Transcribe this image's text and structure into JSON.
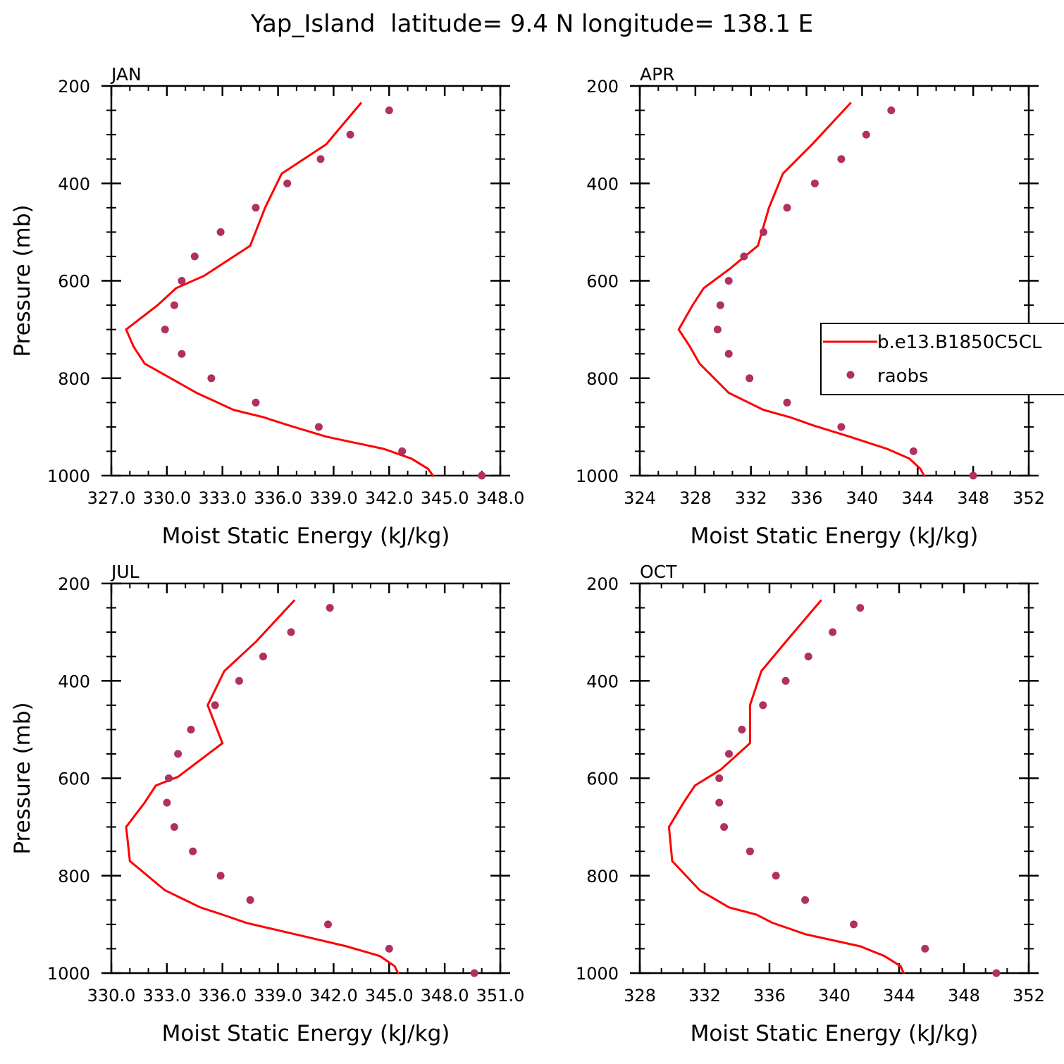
{
  "figure_title": "Yap_Island  latitude= 9.4 N longitude= 138.1 E",
  "chart_data": [
    {
      "type": "line",
      "panel": "JAN",
      "xlabel": "Moist Static Energy (kJ/kg)",
      "ylabel": "Pressure (mb)",
      "xlim": [
        327.0,
        348.0
      ],
      "ylim": [
        1000,
        200
      ],
      "xticks": [
        327,
        330,
        333,
        336,
        339,
        342,
        345,
        348
      ],
      "xtick_labels": [
        "327.0",
        "330.0",
        "333.0",
        "336.0",
        "339.0",
        "342.0",
        "345.0",
        "348.0"
      ],
      "yticks": [
        200,
        400,
        600,
        800,
        1000
      ],
      "ytick_labels": [
        "200",
        "400",
        "600",
        "800",
        "1000"
      ],
      "series": [
        {
          "name": "b.e13.B1850C5CL",
          "kind": "line",
          "color": "#ff0000",
          "points": [
            [
              344.4,
              1002
            ],
            [
              344.1,
              986
            ],
            [
              343.2,
              965
            ],
            [
              341.7,
              945
            ],
            [
              338.6,
              920
            ],
            [
              336.6,
              897
            ],
            [
              335.2,
              880
            ],
            [
              333.6,
              865
            ],
            [
              331.6,
              830
            ],
            [
              328.8,
              770
            ],
            [
              328.2,
              735
            ],
            [
              327.8,
              700
            ],
            [
              329.5,
              650
            ],
            [
              330.5,
              615
            ],
            [
              332.0,
              590
            ],
            [
              334.5,
              528
            ],
            [
              335.3,
              450
            ],
            [
              336.2,
              380
            ],
            [
              338.6,
              320
            ],
            [
              340.5,
              234
            ]
          ]
        },
        {
          "name": "raobs",
          "kind": "markers",
          "color": "#b03060",
          "points": [
            [
              347.0,
              1000
            ],
            [
              342.7,
              950
            ],
            [
              338.2,
              900
            ],
            [
              334.8,
              850
            ],
            [
              332.4,
              800
            ],
            [
              330.8,
              750
            ],
            [
              329.9,
              700
            ],
            [
              330.4,
              650
            ],
            [
              330.8,
              600
            ],
            [
              331.5,
              550
            ],
            [
              332.9,
              500
            ],
            [
              334.8,
              450
            ],
            [
              336.5,
              400
            ],
            [
              338.3,
              350
            ],
            [
              339.9,
              300
            ],
            [
              342.0,
              250
            ]
          ]
        }
      ]
    },
    {
      "type": "line",
      "panel": "APR",
      "xlabel": "Moist Static Energy (kJ/kg)",
      "ylabel": "",
      "xlim": [
        324,
        352
      ],
      "ylim": [
        1000,
        200
      ],
      "xticks": [
        324,
        328,
        332,
        336,
        340,
        344,
        348,
        352
      ],
      "xtick_labels": [
        "324",
        "328",
        "332",
        "336",
        "340",
        "344",
        "348",
        "352"
      ],
      "yticks": [
        200,
        400,
        600,
        800,
        1000
      ],
      "ytick_labels": [
        "200",
        "400",
        "600",
        "800",
        "1000"
      ],
      "legend": {
        "placement": "right",
        "entries": [
          "b.e13.B1850C5CL",
          "raobs"
        ]
      },
      "series": [
        {
          "name": "b.e13.B1850C5CL",
          "kind": "line",
          "color": "#ff0000",
          "points": [
            [
              344.5,
              1002
            ],
            [
              344.2,
              986
            ],
            [
              343.4,
              965
            ],
            [
              341.8,
              945
            ],
            [
              339.1,
              920
            ],
            [
              336.5,
              897
            ],
            [
              334.8,
              880
            ],
            [
              332.9,
              865
            ],
            [
              330.4,
              830
            ],
            [
              328.3,
              770
            ],
            [
              327.6,
              735
            ],
            [
              326.8,
              700
            ],
            [
              327.8,
              650
            ],
            [
              328.6,
              615
            ],
            [
              330.5,
              575
            ],
            [
              332.5,
              528
            ],
            [
              333.3,
              450
            ],
            [
              334.3,
              380
            ],
            [
              336.4,
              320
            ],
            [
              339.2,
              234
            ]
          ]
        },
        {
          "name": "raobs",
          "kind": "markers",
          "color": "#b03060",
          "points": [
            [
              348.0,
              1000
            ],
            [
              343.7,
              950
            ],
            [
              338.5,
              900
            ],
            [
              334.6,
              850
            ],
            [
              331.9,
              800
            ],
            [
              330.4,
              750
            ],
            [
              329.6,
              700
            ],
            [
              329.8,
              650
            ],
            [
              330.4,
              600
            ],
            [
              331.5,
              550
            ],
            [
              332.9,
              500
            ],
            [
              334.6,
              450
            ],
            [
              336.6,
              400
            ],
            [
              338.5,
              350
            ],
            [
              340.3,
              300
            ],
            [
              342.1,
              250
            ]
          ]
        }
      ]
    },
    {
      "type": "line",
      "panel": "JUL",
      "xlabel": "Moist Static Energy (kJ/kg)",
      "ylabel": "Pressure (mb)",
      "xlim": [
        330.0,
        351.0
      ],
      "ylim": [
        1000,
        200
      ],
      "xticks": [
        330,
        333,
        336,
        339,
        342,
        345,
        348,
        351
      ],
      "xtick_labels": [
        "330.0",
        "333.0",
        "336.0",
        "339.0",
        "342.0",
        "345.0",
        "348.0",
        "351.0"
      ],
      "yticks": [
        200,
        400,
        600,
        800,
        1000
      ],
      "ytick_labels": [
        "200",
        "400",
        "600",
        "800",
        "1000"
      ],
      "series": [
        {
          "name": "b.e13.B1850C5CL",
          "kind": "line",
          "color": "#ff0000",
          "points": [
            [
              345.5,
              1002
            ],
            [
              345.3,
              986
            ],
            [
              344.5,
              965
            ],
            [
              342.7,
              945
            ],
            [
              339.9,
              920
            ],
            [
              337.3,
              897
            ],
            [
              336.0,
              880
            ],
            [
              334.8,
              865
            ],
            [
              332.9,
              830
            ],
            [
              331.0,
              770
            ],
            [
              330.9,
              735
            ],
            [
              330.8,
              700
            ],
            [
              331.8,
              650
            ],
            [
              332.4,
              615
            ],
            [
              333.6,
              597
            ],
            [
              336.0,
              528
            ],
            [
              335.2,
              450
            ],
            [
              336.1,
              380
            ],
            [
              337.8,
              320
            ],
            [
              339.9,
              234
            ]
          ]
        },
        {
          "name": "raobs",
          "kind": "markers",
          "color": "#b03060",
          "points": [
            [
              349.6,
              1000
            ],
            [
              345.0,
              950
            ],
            [
              341.7,
              900
            ],
            [
              337.5,
              850
            ],
            [
              335.9,
              800
            ],
            [
              334.4,
              750
            ],
            [
              333.4,
              700
            ],
            [
              333.0,
              650
            ],
            [
              333.1,
              600
            ],
            [
              333.6,
              550
            ],
            [
              334.3,
              500
            ],
            [
              335.6,
              450
            ],
            [
              336.9,
              400
            ],
            [
              338.2,
              350
            ],
            [
              339.7,
              300
            ],
            [
              341.8,
              250
            ]
          ]
        }
      ]
    },
    {
      "type": "line",
      "panel": "OCT",
      "xlabel": "Moist Static Energy (kJ/kg)",
      "ylabel": "",
      "xlim": [
        328,
        352
      ],
      "ylim": [
        1000,
        200
      ],
      "xticks": [
        328,
        332,
        336,
        340,
        344,
        348,
        352
      ],
      "xtick_labels": [
        "328",
        "332",
        "336",
        "340",
        "344",
        "348",
        "352"
      ],
      "yticks": [
        200,
        400,
        600,
        800,
        1000
      ],
      "ytick_labels": [
        "200",
        "400",
        "600",
        "800",
        "1000"
      ],
      "series": [
        {
          "name": "b.e13.B1850C5CL",
          "kind": "line",
          "color": "#ff0000",
          "points": [
            [
              344.3,
              1002
            ],
            [
              344.1,
              986
            ],
            [
              343.1,
              965
            ],
            [
              341.6,
              945
            ],
            [
              338.2,
              920
            ],
            [
              336.2,
              897
            ],
            [
              335.2,
              880
            ],
            [
              333.5,
              865
            ],
            [
              331.7,
              830
            ],
            [
              330.0,
              770
            ],
            [
              329.9,
              735
            ],
            [
              329.8,
              700
            ],
            [
              330.7,
              650
            ],
            [
              331.4,
              615
            ],
            [
              333.0,
              582
            ],
            [
              334.8,
              528
            ],
            [
              334.8,
              450
            ],
            [
              335.5,
              380
            ],
            [
              337.0,
              320
            ],
            [
              339.2,
              234
            ]
          ]
        },
        {
          "name": "raobs",
          "kind": "markers",
          "color": "#b03060",
          "points": [
            [
              350.0,
              1000
            ],
            [
              345.6,
              950
            ],
            [
              341.2,
              900
            ],
            [
              338.2,
              850
            ],
            [
              336.4,
              800
            ],
            [
              334.8,
              750
            ],
            [
              333.2,
              700
            ],
            [
              332.9,
              650
            ],
            [
              332.9,
              600
            ],
            [
              333.5,
              550
            ],
            [
              334.3,
              500
            ],
            [
              335.6,
              450
            ],
            [
              337.0,
              400
            ],
            [
              338.4,
              350
            ],
            [
              339.9,
              300
            ],
            [
              341.6,
              250
            ]
          ]
        }
      ]
    }
  ]
}
